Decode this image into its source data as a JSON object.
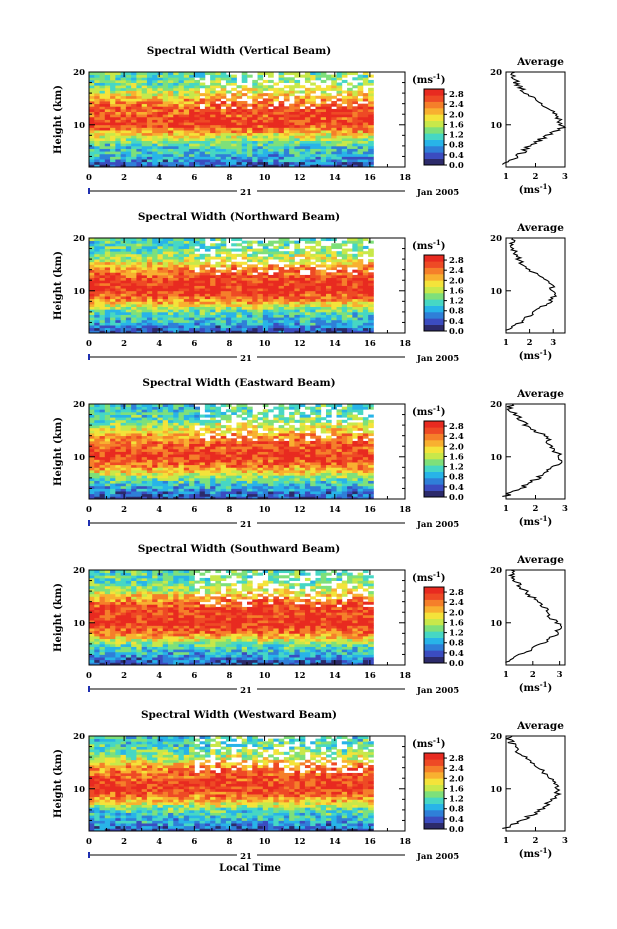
{
  "figure": {
    "xlabel": "Local Time",
    "date_label": "Jan 2005",
    "day_label": "21",
    "ylabel": "Height (km)",
    "cbar_unit": "(ms",
    "cbar_unit_exp": "-1",
    "avg_title": "Average",
    "avg_xlabel_base": "(ms",
    "avg_xlabel_exp": "-1"
  },
  "chart_data": [
    {
      "type": "heatmap",
      "title": "Spectral Width (Vertical Beam)",
      "xlabel": "Local Time",
      "ylabel": "Height (km)",
      "xlim": [
        0,
        18
      ],
      "ylim": [
        2,
        20
      ],
      "data_end_hour": 16.2,
      "x_ticks": [
        "0",
        "2",
        "4",
        "6",
        "8",
        "10",
        "12",
        "14",
        "16",
        "18"
      ],
      "y_ticks": [
        "10",
        "20"
      ],
      "colorbar": {
        "unit": "ms^-1",
        "ticks": [
          "0.0",
          "0.4",
          "0.8",
          "1.2",
          "1.6",
          "2.0",
          "2.4",
          "2.8"
        ],
        "range": [
          0,
          3.0
        ]
      },
      "colormap": [
        "#2c2a6a",
        "#3b4cc0",
        "#2f7fd8",
        "#28b4e8",
        "#46d7c4",
        "#7ee07a",
        "#c8e84a",
        "#f4e33a",
        "#f8b030",
        "#f57f2a",
        "#ee4a25",
        "#e82a20"
      ],
      "height_profile": [
        [
          2,
          0.3
        ],
        [
          4,
          0.9
        ],
        [
          6,
          1.1
        ],
        [
          8,
          1.8
        ],
        [
          10,
          2.8
        ],
        [
          12,
          2.6
        ],
        [
          14,
          2.4
        ],
        [
          16,
          1.7
        ],
        [
          18,
          1.3
        ],
        [
          20,
          1.2
        ]
      ],
      "average": {
        "title": "Average",
        "xlim": [
          1,
          3
        ],
        "x_ticks": [
          "1",
          "2",
          "3"
        ],
        "y_ticks": [
          "10",
          "20"
        ],
        "profile": [
          [
            2.5,
            1.0
          ],
          [
            3.0,
            1.1
          ],
          [
            4.0,
            1.4
          ],
          [
            6.0,
            1.8
          ],
          [
            8.0,
            2.4
          ],
          [
            9.5,
            2.9
          ],
          [
            11.0,
            2.8
          ],
          [
            12.5,
            2.6
          ],
          [
            14.0,
            2.2
          ],
          [
            15.5,
            1.8
          ],
          [
            17.0,
            1.5
          ],
          [
            18.5,
            1.3
          ],
          [
            19.5,
            1.2
          ],
          [
            20.0,
            1.3
          ]
        ]
      }
    },
    {
      "type": "heatmap",
      "title": "Spectral Width (Northward Beam)",
      "xlabel": "Local Time",
      "ylabel": "Height (km)",
      "xlim": [
        0,
        18
      ],
      "ylim": [
        2,
        20
      ],
      "data_end_hour": 16.2,
      "x_ticks": [
        "0",
        "2",
        "4",
        "6",
        "8",
        "10",
        "12",
        "14",
        "16",
        "18"
      ],
      "y_ticks": [
        "10",
        "20"
      ],
      "colorbar": {
        "unit": "ms^-1",
        "ticks": [
          "0.0",
          "0.4",
          "0.8",
          "1.2",
          "1.6",
          "2.0",
          "2.4",
          "2.8"
        ],
        "range": [
          0,
          3.0
        ]
      },
      "colormap": [
        "#2c2a6a",
        "#3b4cc0",
        "#2f7fd8",
        "#28b4e8",
        "#46d7c4",
        "#7ee07a",
        "#c8e84a",
        "#f4e33a",
        "#f8b030",
        "#f57f2a",
        "#ee4a25",
        "#e82a20"
      ],
      "height_profile": [
        [
          2,
          0.3
        ],
        [
          4,
          0.9
        ],
        [
          6,
          1.2
        ],
        [
          8,
          2.2
        ],
        [
          10,
          2.9
        ],
        [
          12,
          2.7
        ],
        [
          14,
          2.3
        ],
        [
          16,
          1.6
        ],
        [
          18,
          1.2
        ],
        [
          20,
          1.1
        ]
      ],
      "average": {
        "title": "Average",
        "xlim": [
          1,
          3.5
        ],
        "x_ticks": [
          "1",
          "2",
          "3"
        ],
        "y_ticks": [
          "10",
          "20"
        ],
        "profile": [
          [
            2.5,
            1.1
          ],
          [
            3.0,
            1.2
          ],
          [
            4.0,
            1.6
          ],
          [
            6.0,
            2.2
          ],
          [
            8.0,
            2.9
          ],
          [
            9.5,
            3.1
          ],
          [
            11.0,
            2.9
          ],
          [
            12.5,
            2.6
          ],
          [
            14.0,
            2.0
          ],
          [
            15.5,
            1.6
          ],
          [
            17.0,
            1.4
          ],
          [
            18.5,
            1.2
          ],
          [
            19.5,
            1.3
          ],
          [
            20.0,
            1.4
          ]
        ]
      }
    },
    {
      "type": "heatmap",
      "title": "Spectral Width (Eastward Beam)",
      "xlabel": "Local Time",
      "ylabel": "Height (km)",
      "xlim": [
        0,
        18
      ],
      "ylim": [
        2,
        20
      ],
      "data_end_hour": 16.2,
      "x_ticks": [
        "0",
        "2",
        "4",
        "6",
        "8",
        "10",
        "12",
        "14",
        "16",
        "18"
      ],
      "y_ticks": [
        "10",
        "20"
      ],
      "colorbar": {
        "unit": "ms^-1",
        "ticks": [
          "0.0",
          "0.4",
          "0.8",
          "1.2",
          "1.6",
          "2.0",
          "2.4",
          "2.8"
        ],
        "range": [
          0,
          3.0
        ]
      },
      "colormap": [
        "#2c2a6a",
        "#3b4cc0",
        "#2f7fd8",
        "#28b4e8",
        "#46d7c4",
        "#7ee07a",
        "#c8e84a",
        "#f4e33a",
        "#f8b030",
        "#f57f2a",
        "#ee4a25",
        "#e82a20"
      ],
      "height_profile": [
        [
          2,
          0.3
        ],
        [
          4,
          0.8
        ],
        [
          6,
          1.3
        ],
        [
          8,
          2.3
        ],
        [
          10,
          2.8
        ],
        [
          12,
          2.5
        ],
        [
          14,
          2.2
        ],
        [
          16,
          1.5
        ],
        [
          18,
          1.1
        ],
        [
          20,
          1.0
        ]
      ],
      "average": {
        "title": "Average",
        "xlim": [
          1,
          3
        ],
        "x_ticks": [
          "1",
          "2",
          "3"
        ],
        "y_ticks": [
          "10",
          "20"
        ],
        "profile": [
          [
            2.5,
            1.0
          ],
          [
            3.0,
            1.1
          ],
          [
            4.0,
            1.5
          ],
          [
            6.0,
            2.1
          ],
          [
            8.0,
            2.6
          ],
          [
            9.5,
            2.9
          ],
          [
            11.0,
            2.7
          ],
          [
            12.5,
            2.5
          ],
          [
            14.0,
            2.3
          ],
          [
            15.5,
            1.8
          ],
          [
            17.0,
            1.5
          ],
          [
            18.5,
            1.2
          ],
          [
            19.5,
            1.1
          ],
          [
            20.0,
            1.2
          ]
        ]
      }
    },
    {
      "type": "heatmap",
      "title": "Spectral Width (Southward Beam)",
      "xlabel": "Local Time",
      "ylabel": "Height (km)",
      "xlim": [
        0,
        18
      ],
      "ylim": [
        2,
        20
      ],
      "data_end_hour": 16.2,
      "x_ticks": [
        "0",
        "2",
        "4",
        "6",
        "8",
        "10",
        "12",
        "14",
        "16",
        "18"
      ],
      "y_ticks": [
        "10",
        "20"
      ],
      "colorbar": {
        "unit": "ms^-1",
        "ticks": [
          "0.0",
          "0.4",
          "0.8",
          "1.2",
          "1.6",
          "2.0",
          "2.4",
          "2.8"
        ],
        "range": [
          0,
          3.0
        ]
      },
      "colormap": [
        "#2c2a6a",
        "#3b4cc0",
        "#2f7fd8",
        "#28b4e8",
        "#46d7c4",
        "#7ee07a",
        "#c8e84a",
        "#f4e33a",
        "#f8b030",
        "#f57f2a",
        "#ee4a25",
        "#e82a20"
      ],
      "height_profile": [
        [
          2,
          0.3
        ],
        [
          4,
          0.8
        ],
        [
          6,
          1.3
        ],
        [
          8,
          2.4
        ],
        [
          10,
          2.9
        ],
        [
          12,
          2.7
        ],
        [
          14,
          2.4
        ],
        [
          16,
          1.6
        ],
        [
          18,
          1.2
        ],
        [
          20,
          1.1
        ]
      ],
      "average": {
        "title": "Average",
        "xlim": [
          1,
          3.2
        ],
        "x_ticks": [
          "1",
          "2",
          "3"
        ],
        "y_ticks": [
          "10",
          "20"
        ],
        "profile": [
          [
            2.5,
            1.1
          ],
          [
            3.0,
            1.2
          ],
          [
            4.0,
            1.6
          ],
          [
            6.0,
            2.3
          ],
          [
            8.0,
            2.9
          ],
          [
            9.5,
            3.0
          ],
          [
            11.0,
            2.7
          ],
          [
            12.5,
            2.5
          ],
          [
            14.0,
            2.2
          ],
          [
            15.5,
            1.8
          ],
          [
            17.0,
            1.5
          ],
          [
            18.5,
            1.3
          ],
          [
            19.5,
            1.2
          ],
          [
            20.0,
            1.3
          ]
        ]
      }
    },
    {
      "type": "heatmap",
      "title": "Spectral Width (Westward Beam)",
      "xlabel": "Local Time",
      "ylabel": "Height (km)",
      "xlim": [
        0,
        18
      ],
      "ylim": [
        2,
        20
      ],
      "data_end_hour": 16.2,
      "x_ticks": [
        "0",
        "2",
        "4",
        "6",
        "8",
        "10",
        "12",
        "14",
        "16",
        "18"
      ],
      "y_ticks": [
        "10",
        "20"
      ],
      "colorbar": {
        "unit": "ms^-1",
        "ticks": [
          "0.0",
          "0.4",
          "0.8",
          "1.2",
          "1.6",
          "2.0",
          "2.4",
          "2.8"
        ],
        "range": [
          0,
          3.0
        ]
      },
      "colormap": [
        "#2c2a6a",
        "#3b4cc0",
        "#2f7fd8",
        "#28b4e8",
        "#46d7c4",
        "#7ee07a",
        "#c8e84a",
        "#f4e33a",
        "#f8b030",
        "#f57f2a",
        "#ee4a25",
        "#e82a20"
      ],
      "height_profile": [
        [
          2,
          0.3
        ],
        [
          4,
          0.9
        ],
        [
          6,
          1.2
        ],
        [
          8,
          2.2
        ],
        [
          10,
          2.8
        ],
        [
          12,
          2.6
        ],
        [
          14,
          2.3
        ],
        [
          16,
          1.5
        ],
        [
          18,
          1.1
        ],
        [
          20,
          1.0
        ]
      ],
      "average": {
        "title": "Average",
        "xlim": [
          1,
          3
        ],
        "x_ticks": [
          "1",
          "2",
          "3"
        ],
        "y_ticks": [
          "10",
          "20"
        ],
        "profile": [
          [
            2.5,
            1.0
          ],
          [
            3.0,
            1.1
          ],
          [
            4.0,
            1.5
          ],
          [
            6.0,
            2.2
          ],
          [
            8.0,
            2.6
          ],
          [
            9.5,
            2.8
          ],
          [
            11.0,
            2.7
          ],
          [
            12.5,
            2.4
          ],
          [
            14.0,
            2.1
          ],
          [
            15.5,
            1.7
          ],
          [
            17.0,
            1.4
          ],
          [
            18.5,
            1.2
          ],
          [
            19.5,
            1.1
          ],
          [
            20.0,
            1.2
          ]
        ]
      }
    }
  ]
}
